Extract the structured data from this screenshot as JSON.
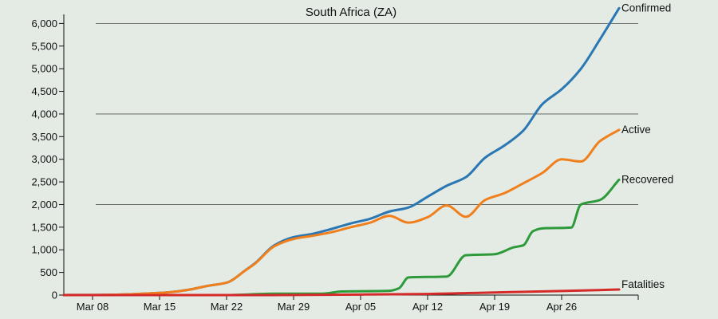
{
  "chart_data": {
    "type": "line",
    "title": "South Africa (ZA)",
    "xlabel": "",
    "ylabel": "",
    "x_ticks": [
      {
        "date": "2020-03-08",
        "label": "Mar 08"
      },
      {
        "date": "2020-03-15",
        "label": "Mar 15"
      },
      {
        "date": "2020-03-22",
        "label": "Mar 22"
      },
      {
        "date": "2020-03-29",
        "label": "Mar 29"
      },
      {
        "date": "2020-04-05",
        "label": "Apr 05"
      },
      {
        "date": "2020-04-12",
        "label": "Apr 12"
      },
      {
        "date": "2020-04-19",
        "label": "Apr 19"
      },
      {
        "date": "2020-04-26",
        "label": "Apr 26"
      }
    ],
    "xlim": [
      "2020-03-05",
      "2020-05-04"
    ],
    "ylim": [
      0,
      6500
    ],
    "y_ticks": [
      0,
      500,
      1000,
      1500,
      2000,
      2500,
      3000,
      3500,
      4000,
      4500,
      5000,
      5500,
      6000
    ],
    "y_tick_labels": [
      "0",
      "500",
      "1,000",
      "1,500",
      "2,000",
      "2,500",
      "3,000",
      "3,500",
      "4,000",
      "4,500",
      "5,000",
      "5,500",
      "6,000"
    ],
    "grid_y": [
      2000,
      4000,
      6000
    ],
    "series": [
      {
        "name": "Confirmed",
        "color": "#2a77b3",
        "points": [
          [
            "2020-03-05",
            1
          ],
          [
            "2020-03-08",
            3
          ],
          [
            "2020-03-10",
            7
          ],
          [
            "2020-03-12",
            17
          ],
          [
            "2020-03-14",
            38
          ],
          [
            "2020-03-16",
            62
          ],
          [
            "2020-03-18",
            116
          ],
          [
            "2020-03-20",
            202
          ],
          [
            "2020-03-22",
            274
          ],
          [
            "2020-03-24",
            554
          ],
          [
            "2020-03-25",
            709
          ],
          [
            "2020-03-27",
            1100
          ],
          [
            "2020-03-29",
            1280
          ],
          [
            "2020-03-31",
            1353
          ],
          [
            "2020-04-02",
            1462
          ],
          [
            "2020-04-04",
            1585
          ],
          [
            "2020-04-06",
            1686
          ],
          [
            "2020-04-08",
            1845
          ],
          [
            "2020-04-10",
            1934
          ],
          [
            "2020-04-12",
            2173
          ],
          [
            "2020-04-14",
            2415
          ],
          [
            "2020-04-16",
            2605
          ],
          [
            "2020-04-18",
            3034
          ],
          [
            "2020-04-20",
            3300
          ],
          [
            "2020-04-22",
            3635
          ],
          [
            "2020-04-24",
            4220
          ],
          [
            "2020-04-26",
            4546
          ],
          [
            "2020-04-28",
            4996
          ],
          [
            "2020-04-30",
            5647
          ],
          [
            "2020-05-02",
            6336
          ]
        ]
      },
      {
        "name": "Active",
        "color": "#f07f1c",
        "points": [
          [
            "2020-03-05",
            1
          ],
          [
            "2020-03-08",
            3
          ],
          [
            "2020-03-10",
            7
          ],
          [
            "2020-03-12",
            17
          ],
          [
            "2020-03-14",
            38
          ],
          [
            "2020-03-16",
            62
          ],
          [
            "2020-03-18",
            116
          ],
          [
            "2020-03-20",
            202
          ],
          [
            "2020-03-22",
            274
          ],
          [
            "2020-03-24",
            550
          ],
          [
            "2020-03-25",
            700
          ],
          [
            "2020-03-27",
            1080
          ],
          [
            "2020-03-29",
            1240
          ],
          [
            "2020-03-31",
            1310
          ],
          [
            "2020-04-02",
            1390
          ],
          [
            "2020-04-04",
            1500
          ],
          [
            "2020-04-06",
            1600
          ],
          [
            "2020-04-08",
            1750
          ],
          [
            "2020-04-10",
            1600
          ],
          [
            "2020-04-12",
            1720
          ],
          [
            "2020-04-14",
            1980
          ],
          [
            "2020-04-16",
            1730
          ],
          [
            "2020-04-18",
            2100
          ],
          [
            "2020-04-20",
            2250
          ],
          [
            "2020-04-22",
            2470
          ],
          [
            "2020-04-24",
            2700
          ],
          [
            "2020-04-26",
            3000
          ],
          [
            "2020-04-28",
            2950
          ],
          [
            "2020-04-30",
            3400
          ],
          [
            "2020-05-02",
            3650
          ]
        ]
      },
      {
        "name": "Recovered",
        "color": "#2e9a3a",
        "points": [
          [
            "2020-03-05",
            0
          ],
          [
            "2020-03-22",
            0
          ],
          [
            "2020-03-27",
            31
          ],
          [
            "2020-04-01",
            31
          ],
          [
            "2020-04-03",
            80
          ],
          [
            "2020-04-08",
            95
          ],
          [
            "2020-04-09",
            150
          ],
          [
            "2020-04-10",
            390
          ],
          [
            "2020-04-14",
            410
          ],
          [
            "2020-04-16",
            880
          ],
          [
            "2020-04-19",
            903
          ],
          [
            "2020-04-21",
            1055
          ],
          [
            "2020-04-22",
            1100
          ],
          [
            "2020-04-23",
            1410
          ],
          [
            "2020-04-24",
            1473
          ],
          [
            "2020-04-27",
            1490
          ],
          [
            "2020-04-28",
            2000
          ],
          [
            "2020-04-30",
            2100
          ],
          [
            "2020-05-02",
            2549
          ]
        ]
      },
      {
        "name": "Fatalities",
        "color": "#d42a2a",
        "points": [
          [
            "2020-03-05",
            0
          ],
          [
            "2020-03-27",
            0
          ],
          [
            "2020-03-29",
            3
          ],
          [
            "2020-04-05",
            12
          ],
          [
            "2020-04-12",
            25
          ],
          [
            "2020-04-19",
            58
          ],
          [
            "2020-04-26",
            90
          ],
          [
            "2020-05-02",
            123
          ]
        ]
      }
    ]
  }
}
